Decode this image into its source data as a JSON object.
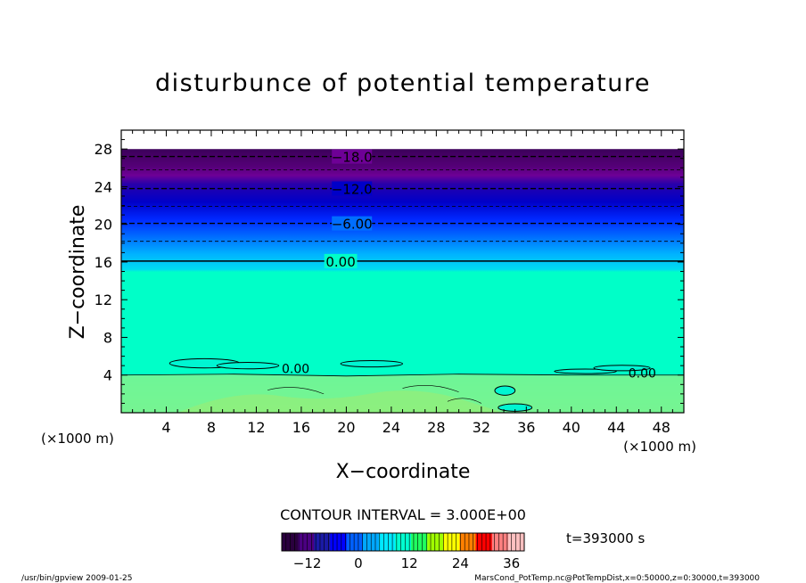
{
  "chart_data": {
    "type": "heatmap",
    "title": "disturbunce of potential temperature",
    "xlabel": "X−coordinate",
    "ylabel": "Z−coordinate",
    "x_unit_left": "(×1000 m)",
    "x_unit_right": "(×1000 m)",
    "xlim": [
      0,
      50
    ],
    "ylim": [
      0,
      30
    ],
    "x_ticks": [
      4,
      8,
      12,
      16,
      20,
      24,
      28,
      32,
      36,
      40,
      44,
      48
    ],
    "x_tick_labels": [
      "4",
      "8",
      "12",
      "16",
      "20",
      "24",
      "28",
      "32",
      "36",
      "40",
      "44",
      "48"
    ],
    "y_ticks": [
      4,
      8,
      12,
      16,
      20,
      24,
      28
    ],
    "y_tick_labels": [
      "4",
      "8",
      "12",
      "16",
      "20",
      "24",
      "28"
    ],
    "field_profile": [
      {
        "z": 0,
        "value": 2.0
      },
      {
        "z": 4,
        "value": 1.0
      },
      {
        "z": 4.2,
        "value": 0.0
      },
      {
        "z": 16,
        "value": 0.0
      },
      {
        "z": 16.3,
        "value": -1.5
      },
      {
        "z": 18,
        "value": -3.0
      },
      {
        "z": 20,
        "value": -6.0
      },
      {
        "z": 22,
        "value": -9.0
      },
      {
        "z": 24,
        "value": -12.0
      },
      {
        "z": 26,
        "value": -15.0
      },
      {
        "z": 27,
        "value": -18.0
      },
      {
        "z": 28,
        "value": -20.0
      },
      {
        "z": 30,
        "value": -22.0
      }
    ],
    "contours": [
      {
        "value": -18,
        "z": 27.2,
        "label": "−18.0",
        "label_x": 20.5,
        "dashed": true
      },
      {
        "value": -15,
        "z": 25.8,
        "label": "",
        "dashed": true
      },
      {
        "value": -12,
        "z": 23.8,
        "label": "−12.0",
        "label_x": 20.5,
        "dashed": true
      },
      {
        "value": -9,
        "z": 21.9,
        "label": "",
        "dashed": true
      },
      {
        "value": -6,
        "z": 20.1,
        "label": "−6.00",
        "label_x": 20.5,
        "dashed": true
      },
      {
        "value": -3,
        "z": 18.2,
        "label": "",
        "dashed": true
      },
      {
        "value": 0,
        "z": 16.1,
        "label": "0.00",
        "label_x": 19.5,
        "dashed": false
      }
    ],
    "surface_contour_labels": [
      {
        "text": "0.00",
        "x": 15.5,
        "z": 4.8
      },
      {
        "text": "0.00",
        "x": 46.3,
        "z": 4.3
      }
    ],
    "contour_interval_text": "CONTOUR INTERVAL = 3.000E+00",
    "time_text": "t=393000 s",
    "colorbar": {
      "range": [
        -18,
        39
      ],
      "tick_values": [
        -12,
        0,
        12,
        24,
        36
      ],
      "tick_labels": [
        "−12",
        "0",
        "12",
        "24",
        "36"
      ],
      "colors": [
        "#2a003e",
        "#4b0082",
        "#1a1aa6",
        "#0000ff",
        "#0060ff",
        "#00a8ff",
        "#00e8ff",
        "#00ffd0",
        "#20ff60",
        "#a0ff00",
        "#ffff00",
        "#ff8000",
        "#ff0000",
        "#ff8080",
        "#ffc0c0"
      ]
    },
    "footer_left": "/usr/bin/gpview   2009-01-25",
    "footer_right": "MarsCond_PotTemp.nc@PotTempDist,x=0:50000,z=0:30000,t=393000"
  }
}
